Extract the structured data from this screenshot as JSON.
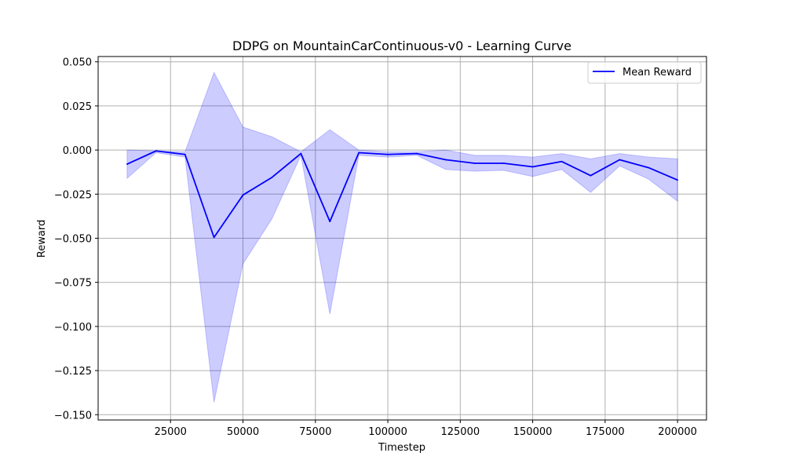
{
  "chart_data": {
    "type": "line",
    "title": "DDPG on MountainCarContinuous-v0 - Learning Curve",
    "xlabel": "Timestep",
    "ylabel": "Reward",
    "xlim": [
      0,
      210000
    ],
    "ylim": [
      -0.153,
      0.053
    ],
    "xticks": [
      25000,
      50000,
      75000,
      100000,
      125000,
      150000,
      175000,
      200000
    ],
    "xtick_labels": [
      "25000",
      "50000",
      "75000",
      "100000",
      "125000",
      "150000",
      "175000",
      "200000"
    ],
    "yticks": [
      0.05,
      0.025,
      0.0,
      -0.025,
      -0.05,
      -0.075,
      -0.1,
      -0.125,
      -0.15
    ],
    "ytick_labels": [
      "0.050",
      "0.025",
      "0.000",
      "−0.025",
      "−0.050",
      "−0.075",
      "−0.100",
      "−0.125",
      "−0.150"
    ],
    "grid": true,
    "legend_position": "top-right",
    "series": [
      {
        "name": "Mean Reward",
        "color": "#0000ff",
        "x": [
          10000,
          20000,
          30000,
          40000,
          50000,
          60000,
          70000,
          80000,
          90000,
          100000,
          110000,
          120000,
          130000,
          140000,
          150000,
          160000,
          170000,
          180000,
          190000,
          200000
        ],
        "y": [
          -0.008,
          -0.0005,
          -0.0025,
          -0.0495,
          -0.0255,
          -0.0155,
          -0.002,
          -0.0405,
          -0.0015,
          -0.0025,
          -0.002,
          -0.0055,
          -0.0075,
          -0.0075,
          -0.0095,
          -0.0065,
          -0.0145,
          -0.0055,
          -0.01,
          -0.017
        ],
        "band_upper": [
          0.0,
          -0.0005,
          -0.001,
          0.044,
          0.013,
          0.0075,
          -0.001,
          0.0115,
          0.0,
          -0.001,
          -0.001,
          0.0,
          -0.003,
          -0.003,
          -0.004,
          -0.002,
          -0.005,
          -0.002,
          -0.004,
          -0.005
        ],
        "band_lower": [
          -0.016,
          -0.0015,
          -0.004,
          -0.143,
          -0.0645,
          -0.039,
          -0.003,
          -0.093,
          -0.003,
          -0.004,
          -0.003,
          -0.011,
          -0.012,
          -0.0115,
          -0.015,
          -0.011,
          -0.024,
          -0.009,
          -0.0165,
          -0.029
        ],
        "band_color": "#0000ff",
        "band_opacity": 0.2
      }
    ]
  }
}
